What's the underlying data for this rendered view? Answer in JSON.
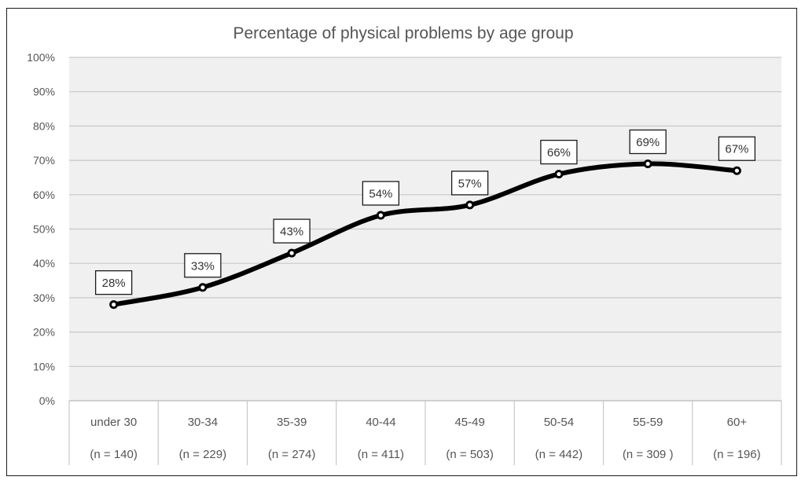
{
  "chart_data": {
    "type": "line",
    "title": "Percentage of physical problems by age group",
    "categories": [
      "under 30",
      "30-34",
      "35-39",
      "40-44",
      "45-49",
      "50-54",
      "55-59",
      "60+"
    ],
    "category_counts": [
      "(n = 140)",
      "(n = 229)",
      "(n = 274)",
      "(n = 411)",
      "(n = 503)",
      "(n = 442)",
      "(n = 309 )",
      "(n = 196)"
    ],
    "values": [
      28,
      33,
      43,
      54,
      57,
      66,
      69,
      67
    ],
    "data_labels": [
      "28%",
      "33%",
      "43%",
      "54%",
      "57%",
      "66%",
      "69%",
      "67%"
    ],
    "y_ticks": [
      "0%",
      "10%",
      "20%",
      "30%",
      "40%",
      "50%",
      "60%",
      "70%",
      "80%",
      "90%",
      "100%"
    ],
    "ylim": [
      0,
      100
    ],
    "xlabel": "",
    "ylabel": "",
    "grid": true,
    "legend": "none",
    "colors": {
      "line": "#000000",
      "grid": "#c8c8c8",
      "plot_bg": "#f0f0f0",
      "marker_fill": "#ffffff"
    }
  }
}
